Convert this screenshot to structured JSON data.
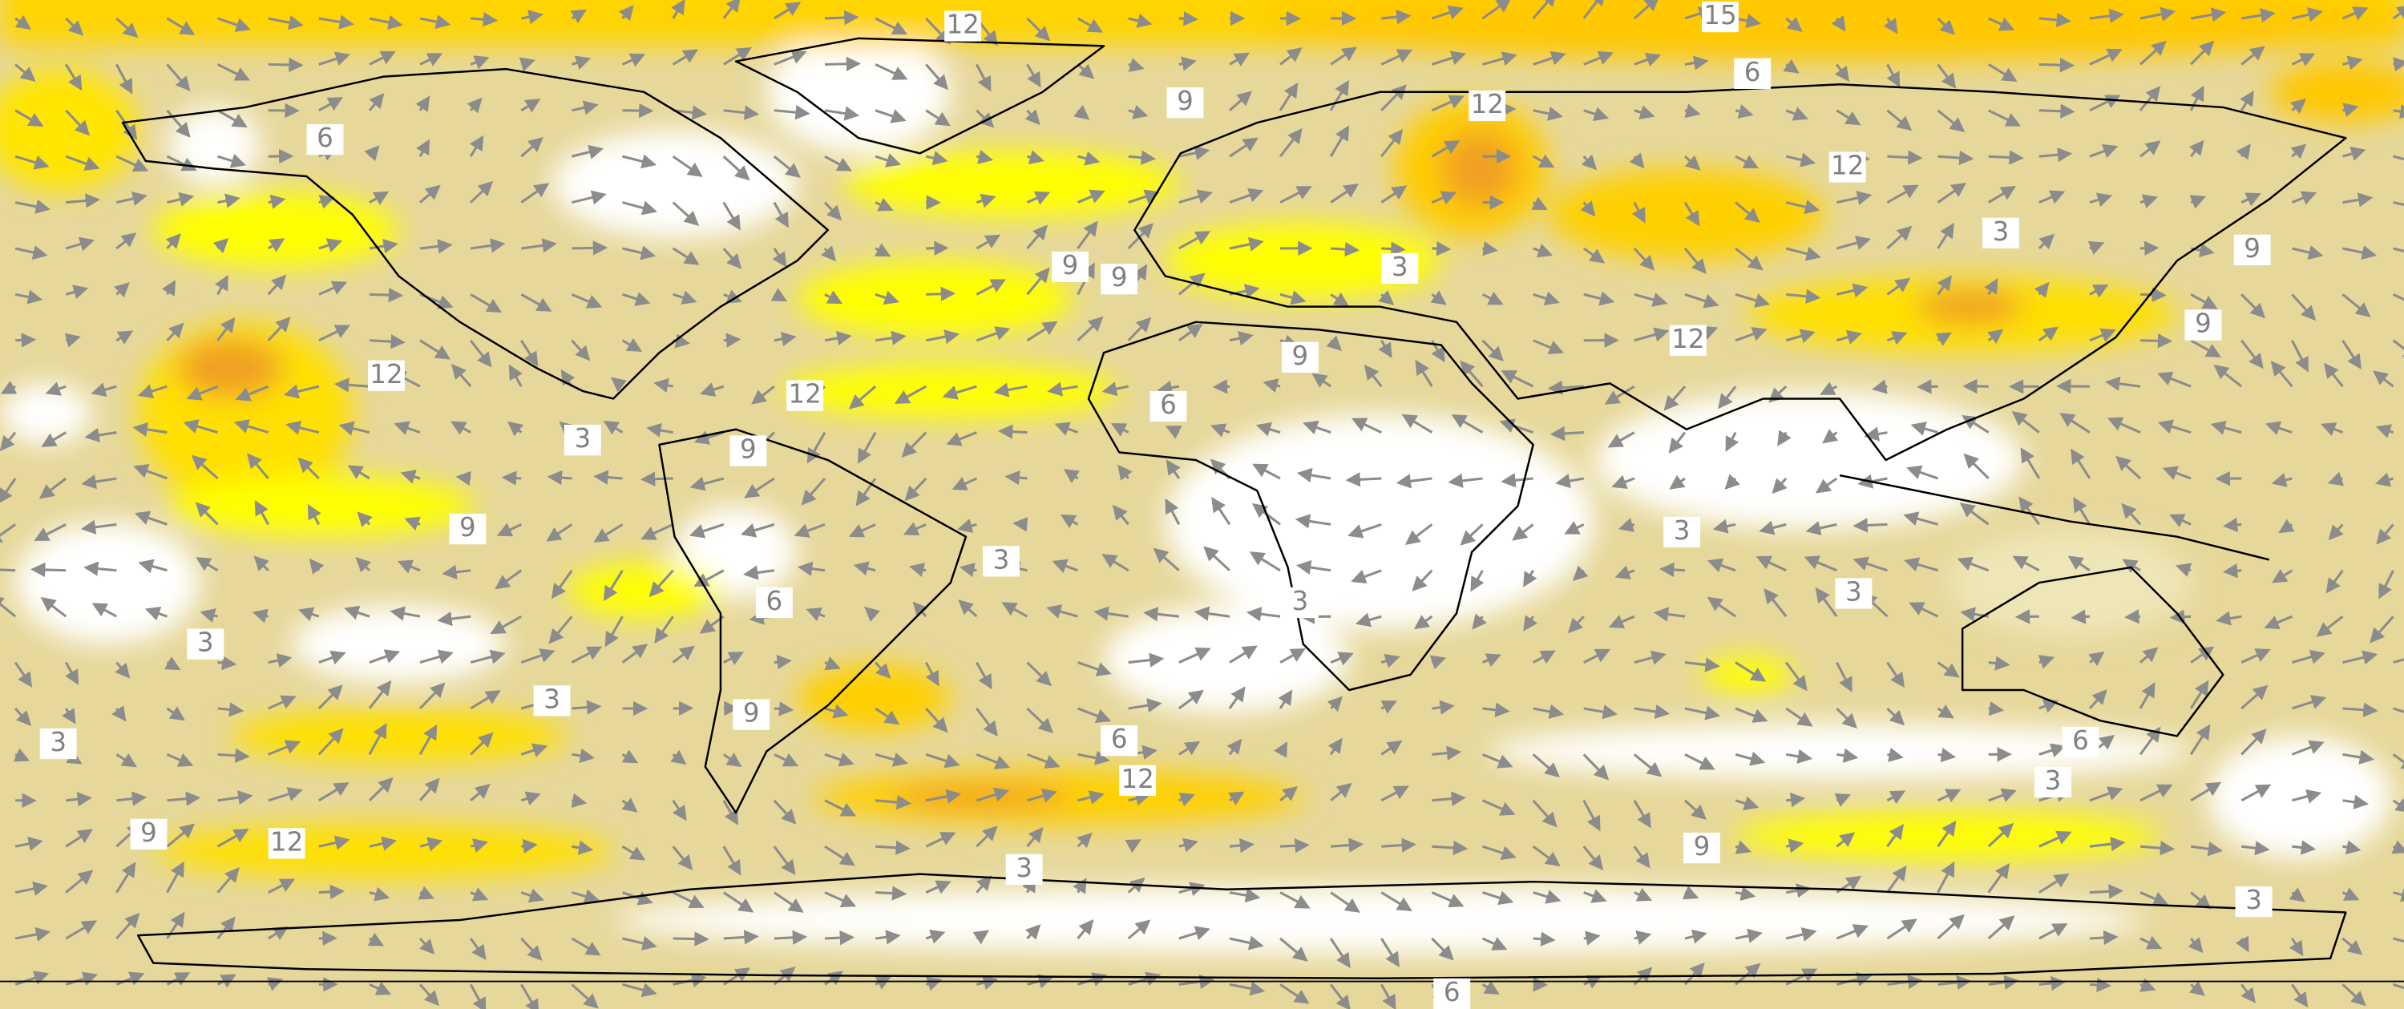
{
  "contour_labels": [
    12,
    15,
    6,
    9,
    12,
    6,
    12,
    3,
    9,
    9,
    9,
    3,
    9,
    12,
    9,
    12,
    12,
    6,
    3,
    9,
    9,
    3,
    3,
    3,
    6,
    3,
    3,
    3,
    9,
    3,
    6,
    12,
    6,
    3,
    9,
    12,
    9,
    3,
    3,
    6
  ]
}
